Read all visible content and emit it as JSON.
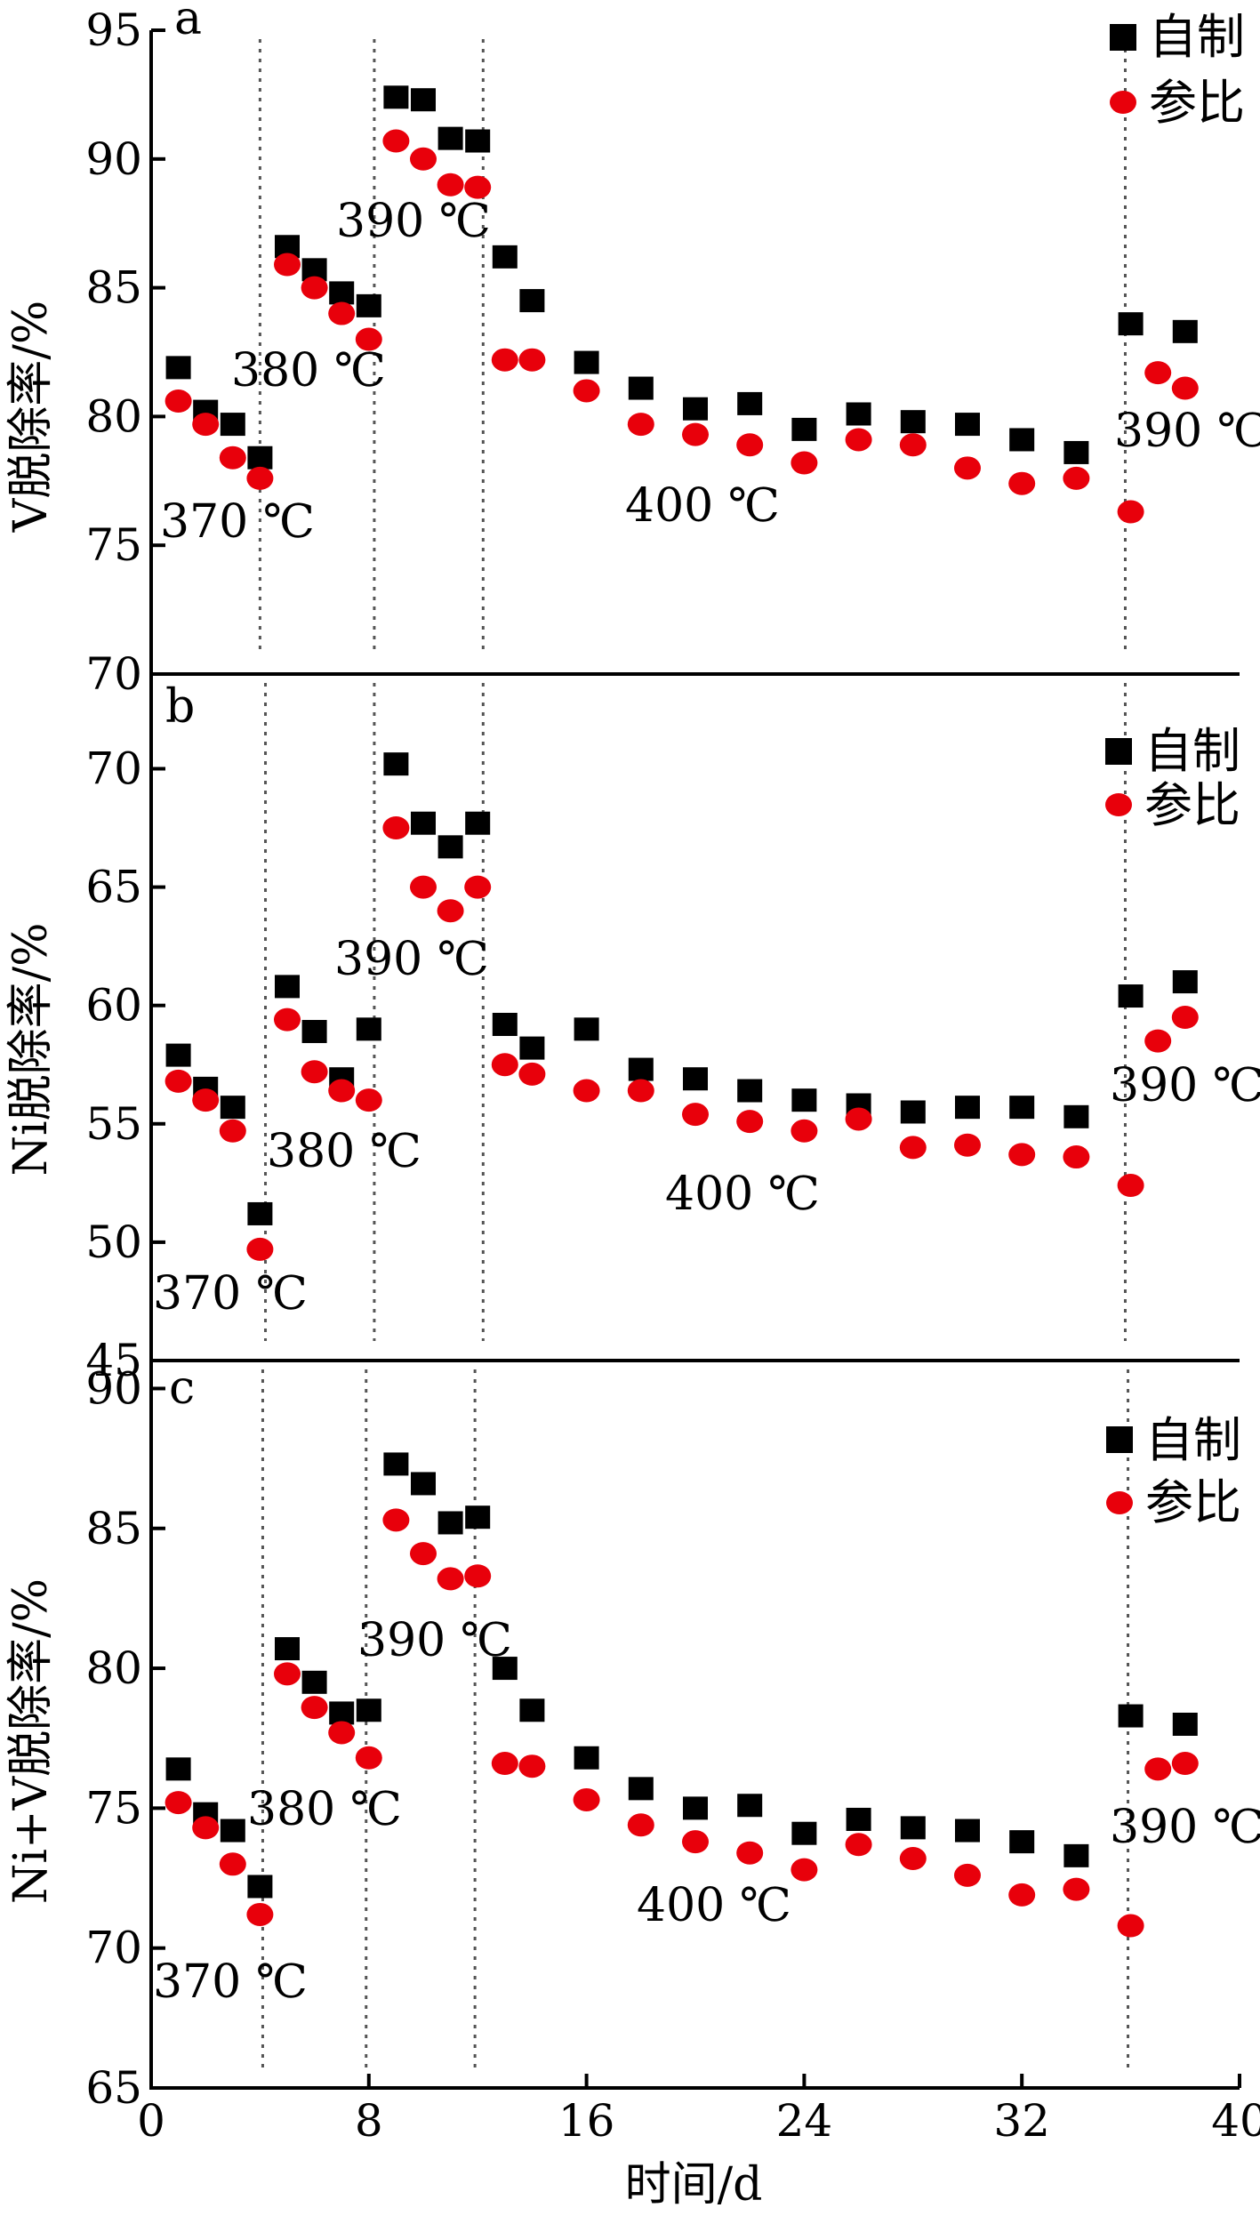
{
  "chart_data": [
    {
      "type": "scatter",
      "panel_label": "a",
      "ylabel": "V脱除率/%",
      "xlim": [
        0,
        40
      ],
      "ylim": [
        70,
        95
      ],
      "yticks": [
        70,
        75,
        80,
        85,
        90,
        95
      ],
      "grid": false,
      "legend_position": "top-right",
      "series": [
        {
          "name": "自制",
          "color": "#000000",
          "marker": "square",
          "x": [
            1,
            2,
            3,
            4,
            5,
            6,
            7,
            8,
            9,
            10,
            11,
            12,
            13,
            14,
            16,
            18,
            20,
            22,
            24,
            26,
            28,
            30,
            32,
            34,
            36,
            38
          ],
          "y": [
            81.9,
            80.2,
            79.7,
            78.4,
            86.6,
            85.7,
            84.8,
            84.3,
            92.4,
            92.3,
            90.8,
            90.7,
            86.2,
            84.5,
            82.1,
            81.1,
            80.3,
            80.5,
            79.5,
            80.1,
            79.8,
            79.7,
            79.1,
            78.6,
            83.6,
            83.3
          ]
        },
        {
          "name": "参比",
          "color": "#e8000b",
          "marker": "circle",
          "x": [
            1,
            2,
            3,
            4,
            5,
            6,
            7,
            8,
            9,
            10,
            11,
            12,
            13,
            14,
            16,
            18,
            20,
            22,
            24,
            26,
            28,
            30,
            32,
            34,
            36,
            37,
            38
          ],
          "y": [
            80.6,
            79.7,
            78.4,
            77.6,
            85.9,
            85.0,
            84.0,
            83.0,
            90.7,
            90.0,
            89.0,
            88.9,
            82.2,
            82.2,
            81.0,
            79.7,
            79.3,
            78.9,
            78.2,
            79.1,
            78.9,
            78.0,
            77.4,
            77.6,
            76.3,
            81.7,
            81.1
          ]
        }
      ],
      "dividers_x": [
        4,
        8.2,
        12.2,
        35.8
      ],
      "region_labels": [
        "370 ℃",
        "380 ℃",
        "390 ℃",
        "400 ℃",
        "390 ℃"
      ]
    },
    {
      "type": "scatter",
      "panel_label": "b",
      "ylabel": "Ni脱除率/%",
      "xlim": [
        0,
        40
      ],
      "ylim": [
        45,
        74
      ],
      "yticks": [
        45,
        50,
        55,
        60,
        65,
        70
      ],
      "grid": false,
      "legend_position": "top-right",
      "series": [
        {
          "name": "自制",
          "color": "#000000",
          "marker": "square",
          "x": [
            1,
            2,
            3,
            4,
            5,
            6,
            7,
            8,
            9,
            10,
            11,
            12,
            13,
            14,
            16,
            18,
            20,
            22,
            24,
            26,
            28,
            30,
            32,
            34,
            36,
            38
          ],
          "y": [
            57.9,
            56.5,
            55.7,
            51.2,
            60.8,
            58.9,
            56.9,
            59.0,
            70.2,
            67.7,
            66.7,
            67.7,
            59.2,
            58.2,
            59.0,
            57.3,
            56.9,
            56.4,
            56.0,
            55.8,
            55.5,
            55.7,
            55.7,
            55.3,
            60.4,
            61.0
          ]
        },
        {
          "name": "参比",
          "color": "#e8000b",
          "marker": "circle",
          "x": [
            1,
            2,
            3,
            4,
            5,
            6,
            7,
            8,
            9,
            10,
            11,
            12,
            13,
            14,
            16,
            18,
            20,
            22,
            24,
            26,
            28,
            30,
            32,
            34,
            36,
            37,
            38
          ],
          "y": [
            56.8,
            56.0,
            54.7,
            49.7,
            59.4,
            57.2,
            56.4,
            56.0,
            67.5,
            65.0,
            64.0,
            65.0,
            57.5,
            57.1,
            56.4,
            56.4,
            55.4,
            55.1,
            54.7,
            55.2,
            54.0,
            54.1,
            53.7,
            53.6,
            52.4,
            58.5,
            59.5
          ]
        }
      ],
      "dividers_x": [
        4.2,
        8.2,
        12.2,
        35.8
      ],
      "region_labels": [
        "370 ℃",
        "380 ℃",
        "390 ℃",
        "400 ℃",
        "390 ℃"
      ]
    },
    {
      "type": "scatter",
      "panel_label": "c",
      "ylabel": "Ni+V脱除率/%",
      "xlabel": "时间/d",
      "xlim": [
        0,
        40
      ],
      "xticks": [
        0,
        8,
        16,
        24,
        32,
        40
      ],
      "ylim": [
        65,
        91
      ],
      "yticks": [
        65,
        70,
        75,
        80,
        85,
        90
      ],
      "grid": false,
      "legend_position": "top-right",
      "series": [
        {
          "name": "自制",
          "color": "#000000",
          "marker": "square",
          "x": [
            1,
            2,
            3,
            4,
            5,
            6,
            7,
            8,
            9,
            10,
            11,
            12,
            13,
            14,
            16,
            18,
            20,
            22,
            24,
            26,
            28,
            30,
            32,
            34,
            36,
            38
          ],
          "y": [
            76.4,
            74.8,
            74.2,
            72.2,
            80.7,
            79.5,
            78.4,
            78.5,
            87.3,
            86.6,
            85.2,
            85.4,
            80.0,
            78.5,
            76.8,
            75.7,
            75.0,
            75.1,
            74.1,
            74.6,
            74.3,
            74.2,
            73.8,
            73.3,
            78.3,
            78.0
          ]
        },
        {
          "name": "参比",
          "color": "#e8000b",
          "marker": "circle",
          "x": [
            1,
            2,
            3,
            4,
            5,
            6,
            7,
            8,
            9,
            10,
            11,
            12,
            13,
            14,
            16,
            18,
            20,
            22,
            24,
            26,
            28,
            30,
            32,
            34,
            36,
            37,
            38
          ],
          "y": [
            75.2,
            74.3,
            73.0,
            71.2,
            79.8,
            78.6,
            77.7,
            76.8,
            85.3,
            84.1,
            83.2,
            83.3,
            76.6,
            76.5,
            75.3,
            74.4,
            73.8,
            73.4,
            72.8,
            73.7,
            73.2,
            72.6,
            71.9,
            72.1,
            70.8,
            76.4,
            76.6
          ]
        }
      ],
      "dividers_x": [
        4.1,
        7.9,
        11.9,
        35.9
      ],
      "region_labels": [
        "370 ℃",
        "380 ℃",
        "390 ℃",
        "400 ℃",
        "390 ℃"
      ]
    }
  ]
}
